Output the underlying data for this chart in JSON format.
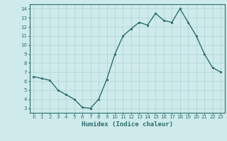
{
  "x": [
    0,
    1,
    2,
    3,
    4,
    5,
    6,
    7,
    8,
    9,
    10,
    11,
    12,
    13,
    14,
    15,
    16,
    17,
    18,
    19,
    20,
    21,
    22,
    23
  ],
  "y": [
    6.5,
    6.3,
    6.1,
    5.0,
    4.5,
    4.0,
    3.1,
    3.0,
    4.0,
    6.2,
    9.0,
    11.0,
    11.8,
    12.5,
    12.2,
    13.5,
    12.7,
    12.5,
    14.0,
    12.5,
    11.0,
    9.0,
    7.5,
    7.0
  ],
  "line_color": "#2d6e6e",
  "marker": "o",
  "markersize": 1.8,
  "linewidth": 1.0,
  "xlabel": "Humidex (Indice chaleur)",
  "xlabel_fontsize": 6.5,
  "xlabel_color": "#2d6e6e",
  "xlim": [
    -0.5,
    23.5
  ],
  "ylim": [
    2.5,
    14.5
  ],
  "yticks": [
    3,
    4,
    5,
    6,
    7,
    8,
    9,
    10,
    11,
    12,
    13,
    14
  ],
  "xticks": [
    0,
    1,
    2,
    3,
    4,
    5,
    6,
    7,
    8,
    9,
    10,
    11,
    12,
    13,
    14,
    15,
    16,
    17,
    18,
    19,
    20,
    21,
    22,
    23
  ],
  "background_color": "#ceeaea",
  "grid_color": "#aed4d4",
  "tick_fontsize": 5.0,
  "tick_color": "#2d6e6e",
  "spine_color": "#2d6e6e"
}
